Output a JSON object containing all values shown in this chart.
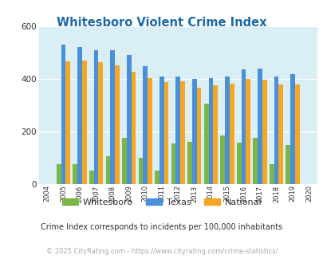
{
  "title": "Whitesboro Violent Crime Index",
  "years": [
    2004,
    2005,
    2006,
    2007,
    2008,
    2009,
    2010,
    2011,
    2012,
    2013,
    2014,
    2015,
    2016,
    2017,
    2018,
    2019,
    2020
  ],
  "whitesboro": [
    null,
    75,
    75,
    52,
    105,
    175,
    100,
    52,
    155,
    160,
    305,
    185,
    158,
    175,
    75,
    150,
    null
  ],
  "texas": [
    null,
    530,
    520,
    510,
    510,
    490,
    450,
    408,
    408,
    400,
    404,
    410,
    435,
    440,
    408,
    418,
    null
  ],
  "national": [
    null,
    468,
    470,
    463,
    453,
    427,
    403,
    389,
    390,
    367,
    375,
    383,
    400,
    397,
    378,
    379,
    null
  ],
  "whitesboro_color": "#7ab648",
  "texas_color": "#4a90d9",
  "national_color": "#f5a623",
  "bg_color": "#daeef5",
  "ylim": [
    0,
    600
  ],
  "yticks": [
    0,
    200,
    400,
    600
  ],
  "legend_labels": [
    "Whitesboro",
    "Texas",
    "National"
  ],
  "footnote1": "Crime Index corresponds to incidents per 100,000 inhabitants",
  "footnote2": "© 2025 CityRating.com - https://www.cityrating.com/crime-statistics/",
  "title_color": "#1a6aaa",
  "footnote1_color": "#333333",
  "footnote2_color": "#aaaaaa"
}
